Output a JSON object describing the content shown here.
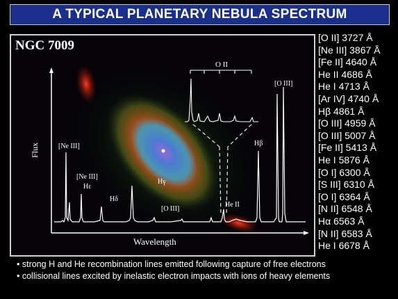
{
  "title": "A TYPICAL PLANETARY NEBULA SPECTRUM",
  "figure": {
    "object_name": "NGC 7009",
    "xlabel": "Wavelength",
    "ylabel": "Flux",
    "inset_label": "O II",
    "peak_labels": [
      {
        "id": "ne3-a",
        "text": "[Ne III]"
      },
      {
        "id": "ne3-b",
        "text": "[Ne III]"
      },
      {
        "id": "he-eps",
        "text": "Hε"
      },
      {
        "id": "h-delta",
        "text": "Hδ"
      },
      {
        "id": "h-gamma",
        "text": "Hγ"
      },
      {
        "id": "o3-weak",
        "text": "[O III]"
      },
      {
        "id": "he2",
        "text": "He II"
      },
      {
        "id": "h-beta",
        "text": "Hβ"
      },
      {
        "id": "o3-strong",
        "text": "[O III]"
      }
    ]
  },
  "line_list": [
    "[O II] 3727 Å",
    "[Ne III] 3867 Å",
    "[Fe II] 4640 Å",
    "He II 4686 Å",
    "He I 4713 Å",
    "[Ar IV] 4740 Å",
    "Hβ 4861 Å",
    "[O III] 4959 Å",
    "[O III] 5007 Å",
    "[Fe II] 5413 Å",
    "He I 5876 Å",
    "[O I] 6300 Å",
    "[S III] 6310 Å",
    "[O I] 6364 Å",
    "[N II] 6548 Å",
    "Hα 6563 Å",
    "[N II] 6583 Å",
    "He I 6678 Å"
  ],
  "notes": [
    "• strong H and He recombination lines emitted following capture of free electrons",
    "• collisional lines excited by inelastic electron impacts with ions of heavy elements"
  ],
  "colors": {
    "banner_bg": "#1a2f8c",
    "background": "#000000",
    "text": "#ffffff",
    "spectrum": "#ffffff"
  }
}
